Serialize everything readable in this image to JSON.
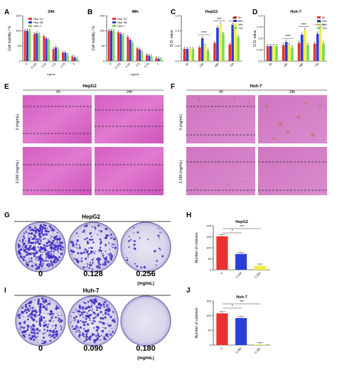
{
  "panels": {
    "A": "A",
    "B": "B",
    "C": "C",
    "D": "D",
    "E": "E",
    "F": "F",
    "G": "G",
    "H": "H",
    "I": "I",
    "J": "J"
  },
  "colors": {
    "red": "#e8322f",
    "blue": "#2b3fd6",
    "green": "#7ed957",
    "yellow": "#eef23a",
    "pink": "#d65fbf",
    "purple": "#3b2fc4"
  },
  "panel_A": {
    "title": "24h",
    "ylabel": "Cell viability / %",
    "xlabel": "mg/mL",
    "xticks": [
      "0",
      "0.125",
      "0.25",
      "0.5",
      "0.75",
      "1"
    ],
    "legend": [
      "Hep G2",
      "Hep 3B",
      "Huh-7"
    ]
  },
  "panel_B": {
    "title": "48h",
    "ylabel": "Cell viability / %",
    "xlabel": "mg/mL",
    "xticks": [
      "0",
      "0.125",
      "0.25",
      "0.5",
      "0.75",
      "1"
    ],
    "legend": [
      "Hep G2",
      "Hep 3B",
      "Huh-7"
    ]
  },
  "panel_C": {
    "title": "HepG2",
    "ylabel": "O.D. value",
    "xticks": [
      "0h",
      "24h",
      "48h",
      "72h"
    ],
    "legend": [
      "0h",
      "24h",
      "48h",
      "72h"
    ],
    "stars": [
      "****",
      "***",
      "***"
    ]
  },
  "panel_D": {
    "title": "Huh-7",
    "ylabel": "O.D. value",
    "xticks": [
      "0h",
      "24h",
      "48h",
      "72h"
    ],
    "legend": [
      "0h",
      "24h",
      "48h",
      "72h"
    ],
    "stars": [
      "****",
      "****",
      "***"
    ]
  },
  "panel_E": {
    "title": "HepG2",
    "cols": [
      "0h",
      "24h"
    ],
    "rows": [
      "0 (mg/mL)",
      "0.256 (mg/mL)"
    ]
  },
  "panel_F": {
    "title": "Huh-7",
    "cols": [
      "0h",
      "24h"
    ],
    "rows": [
      "0 (mg/mL)",
      "0.180 (mg/mL)"
    ]
  },
  "panel_G": {
    "title": "HepG2",
    "doses": [
      "0",
      "0.128",
      "0.256"
    ],
    "unit": "(mg/mL)"
  },
  "panel_I": {
    "title": "Huh-7",
    "doses": [
      "0",
      "0.090",
      "0.180"
    ],
    "unit": "(mg/mL)"
  },
  "panel_H": {
    "title": "HepG2",
    "ylabel": "Number of colonies",
    "xticks": [
      "0",
      "0.128",
      "0.256"
    ],
    "stars": [
      "*",
      "***"
    ]
  },
  "panel_J": {
    "title": "Huh-7",
    "ylabel": "Number of colonies",
    "xticks": [
      "0",
      "0.090",
      "0.180"
    ],
    "stars": [
      "*",
      "***"
    ]
  },
  "chart_data": [
    {
      "type": "bar",
      "title": "24h",
      "categories": [
        "0",
        "0.125",
        "0.25",
        "0.5",
        "0.75",
        "1"
      ],
      "xlabel": "mg/mL",
      "ylabel": "Cell viability / %",
      "ylim": [
        0,
        150
      ],
      "series": [
        {
          "name": "Hep G2",
          "values": [
            100,
            90,
            82,
            40,
            28,
            15
          ]
        },
        {
          "name": "Hep 3B",
          "values": [
            100,
            92,
            75,
            45,
            28,
            12
          ]
        },
        {
          "name": "Huh-7",
          "values": [
            100,
            88,
            70,
            38,
            20,
            8
          ]
        }
      ]
    },
    {
      "type": "bar",
      "title": "48h",
      "categories": [
        "0",
        "0.125",
        "0.25",
        "0.5",
        "0.75",
        "1"
      ],
      "xlabel": "mg/mL",
      "ylabel": "Cell viability / %",
      "ylim": [
        0,
        150
      ],
      "series": [
        {
          "name": "Hep G2",
          "values": [
            100,
            95,
            80,
            42,
            20,
            10
          ]
        },
        {
          "name": "Hep 3B",
          "values": [
            100,
            90,
            70,
            38,
            18,
            8
          ]
        },
        {
          "name": "Huh-7",
          "values": [
            100,
            85,
            60,
            30,
            15,
            6
          ]
        }
      ]
    },
    {
      "type": "bar",
      "title": "HepG2",
      "categories": [
        "0h",
        "24h",
        "48h",
        "72h"
      ],
      "ylabel": "O.D. value",
      "ylim": [
        0,
        1.5
      ],
      "series": [
        {
          "name": "red",
          "values": [
            0.4,
            0.45,
            0.6,
            0.55
          ]
        },
        {
          "name": "blue",
          "values": [
            0.4,
            0.75,
            1.1,
            1.2
          ]
        },
        {
          "name": "yellow",
          "values": [
            0.4,
            0.5,
            1.2,
            1.15
          ]
        },
        {
          "name": "green",
          "values": [
            0.4,
            0.35,
            0.9,
            0.8
          ]
        }
      ]
    },
    {
      "type": "bar",
      "title": "Huh-7",
      "categories": [
        "0h",
        "24h",
        "48h",
        "72h"
      ],
      "ylabel": "O.D. value",
      "ylim": [
        0,
        1.0
      ],
      "series": [
        {
          "name": "red",
          "values": [
            0.33,
            0.35,
            0.4,
            0.38
          ]
        },
        {
          "name": "blue",
          "values": [
            0.33,
            0.42,
            0.58,
            0.6
          ]
        },
        {
          "name": "yellow",
          "values": [
            0.33,
            0.35,
            0.68,
            0.72
          ]
        },
        {
          "name": "green",
          "values": [
            0.33,
            0.3,
            0.35,
            0.38
          ]
        }
      ]
    },
    {
      "type": "bar",
      "title": "HepG2",
      "categories": [
        "0",
        "0.128",
        "0.256"
      ],
      "ylabel": "Number of colonies",
      "ylim": [
        0,
        200
      ],
      "values": [
        152,
        72,
        18
      ]
    },
    {
      "type": "bar",
      "title": "Huh-7",
      "categories": [
        "0",
        "0.090",
        "0.180"
      ],
      "ylabel": "Number of colonies",
      "ylim": [
        0,
        150
      ],
      "values": [
        108,
        92,
        2
      ]
    }
  ]
}
